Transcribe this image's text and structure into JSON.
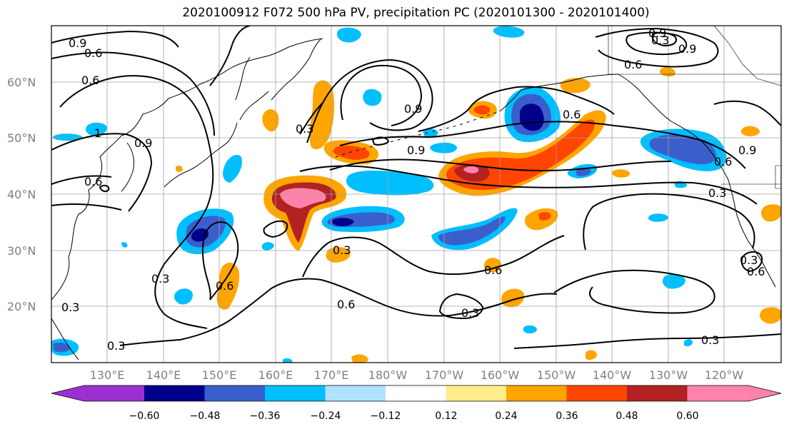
{
  "title": "2020100912 F072 500 hPa PV, precipitation PC (2020101300 - 2020101400)",
  "lat_labels": [
    "60°N",
    "50°N",
    "40°N",
    "30°N",
    "20°N"
  ],
  "lon_labels": [
    "130°E",
    "140°E",
    "150°E",
    "160°E",
    "170°E",
    "180°W",
    "170°W",
    "160°W",
    "150°W",
    "140°W",
    "130°W",
    "120°W"
  ],
  "contour_labels": [
    "0.9",
    "0.6",
    "0.6",
    "0.9",
    "0.6",
    "1",
    "0.3",
    "0.9",
    "0.3",
    "0.6",
    "0.9",
    "0.3",
    "0.9",
    "0.6",
    "0.3",
    "0.6",
    "0.3",
    "0.3",
    "0.6",
    "0.6",
    "0.3",
    "0.3",
    "0.9",
    "0.6",
    "0.9",
    "0.3",
    "0.6",
    "0.3"
  ],
  "colorbar": {
    "ticks": [
      "−0.60",
      "−0.48",
      "−0.36",
      "−0.24",
      "−0.12",
      "0.12",
      "0.24",
      "0.36",
      "0.48",
      "0.60"
    ],
    "colors": [
      "#9b30d0",
      "#00008b",
      "#3a5fcd",
      "#00bfff",
      "#b0e2ff",
      "#ffffff",
      "#ffec8b",
      "#ffa500",
      "#ff4500",
      "#b22222",
      "#ff82ab"
    ]
  }
}
